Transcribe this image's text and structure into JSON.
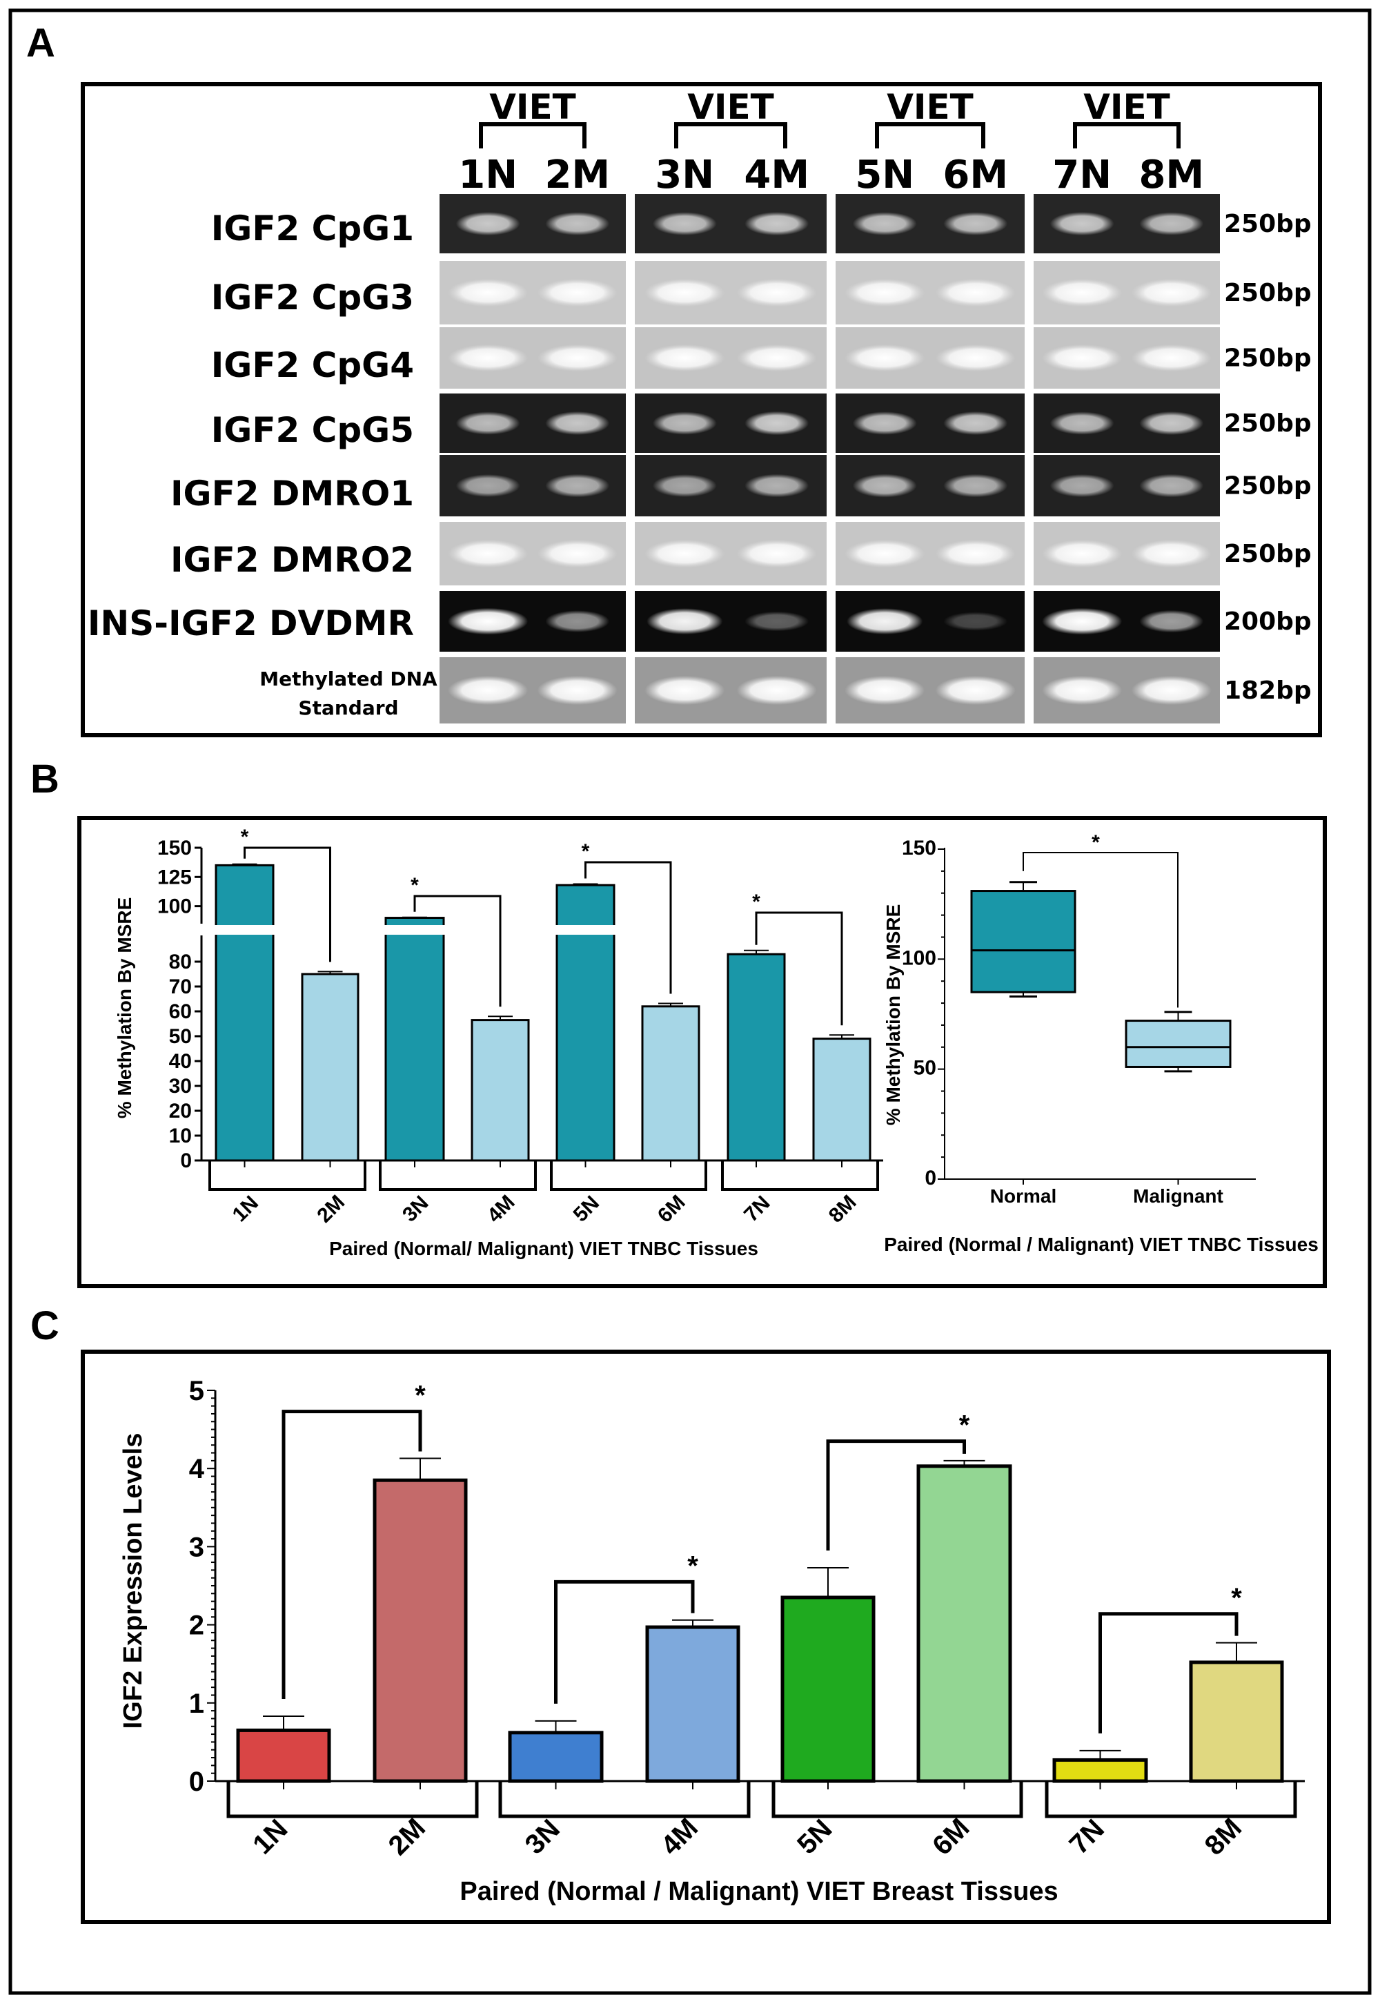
{
  "panel_letters": {
    "a": "A",
    "b": "B",
    "c": "C"
  },
  "gel": {
    "group_header": "VIET",
    "lanes": [
      "1N",
      "2M",
      "3N",
      "4M",
      "5N",
      "6M",
      "7N",
      "8M"
    ],
    "rows": [
      {
        "label": "IGF2 CpG1",
        "size": "250bp",
        "background": "#262626",
        "bands": [
          0.75,
          0.72,
          0.72,
          0.75,
          0.72,
          0.72,
          0.75,
          0.7
        ]
      },
      {
        "label": "IGF2 CpG3",
        "size": "250bp",
        "background": "#c8c8c8",
        "bands": [
          1,
          1,
          1,
          1,
          1,
          1,
          1,
          1
        ]
      },
      {
        "label": "IGF2 CpG4",
        "size": "250bp",
        "background": "#c4c4c4",
        "bands": [
          1,
          1,
          1,
          1,
          1,
          1,
          1,
          1
        ]
      },
      {
        "label": "IGF2 CpG5",
        "size": "250bp",
        "background": "#1e1e1e",
        "bands": [
          0.7,
          0.75,
          0.7,
          0.78,
          0.72,
          0.75,
          0.7,
          0.75
        ]
      },
      {
        "label": "IGF2 DMRO1",
        "size": "250bp",
        "background": "#222222",
        "bands": [
          0.6,
          0.65,
          0.6,
          0.65,
          0.68,
          0.65,
          0.62,
          0.65
        ]
      },
      {
        "label": "IGF2 DMRO2",
        "size": "250bp",
        "background": "#c6c6c6",
        "bands": [
          1,
          1,
          1,
          1,
          1,
          1,
          1,
          1
        ]
      },
      {
        "label": "INS-IGF2 DVDMR",
        "size": "200bp",
        "background": "#0c0c0c",
        "bands": [
          1,
          0.55,
          0.95,
          0.35,
          0.95,
          0.25,
          1,
          0.6
        ]
      },
      {
        "label": "Methylated DNA Standard",
        "label_lines": [
          "Methylated DNA",
          "Standard"
        ],
        "size": "182bp",
        "background": "#9a9a9a",
        "bands": [
          1,
          1,
          1,
          1,
          1,
          1,
          1,
          1
        ]
      }
    ]
  },
  "chart_data": [
    {
      "type": "bar",
      "panel": "B",
      "categories": [
        "1N",
        "2M",
        "3N",
        "4M",
        "5N",
        "6M",
        "7N",
        "8M"
      ],
      "values": [
        135,
        75,
        90,
        56.5,
        118,
        62,
        83,
        49
      ],
      "errors": [
        1,
        1,
        0.5,
        1.5,
        1,
        1.2,
        1.5,
        1.5
      ],
      "colors": [
        "#1a97a8",
        "#a6d6e6",
        "#1a97a8",
        "#a6d6e6",
        "#1a97a8",
        "#a6d6e6",
        "#1a97a8",
        "#a6d6e6"
      ],
      "ylabel": "% Methylation By MSRE",
      "xlabel": "Paired (Normal/ Malignant) VIET TNBC Tissues",
      "ylim": [
        0,
        150
      ],
      "axis_break": [
        85,
        87
      ],
      "yticks": [
        0,
        10,
        20,
        30,
        40,
        50,
        60,
        70,
        80,
        100,
        125,
        150
      ],
      "significance": "*",
      "pairs": [
        [
          0,
          1
        ],
        [
          2,
          3
        ],
        [
          4,
          5
        ],
        [
          6,
          7
        ]
      ]
    },
    {
      "type": "box",
      "panel": "B",
      "categories": [
        "Normal",
        "Malignant"
      ],
      "boxes": [
        {
          "min": 83,
          "q1": 85,
          "median": 104,
          "q3": 131,
          "max": 135,
          "color": "#1a97a8"
        },
        {
          "min": 49,
          "q1": 51,
          "median": 60,
          "q3": 72,
          "max": 76,
          "color": "#a6d6e6"
        }
      ],
      "ylabel": "% Methylation By MSRE",
      "xlabel": "Paired (Normal / Malignant) VIET TNBC Tissues",
      "ylim": [
        0,
        150
      ],
      "yticks": [
        0,
        50,
        100,
        150
      ],
      "significance": "*"
    },
    {
      "type": "bar",
      "panel": "C",
      "categories": [
        "1N",
        "2M",
        "3N",
        "4M",
        "5N",
        "6M",
        "7N",
        "8M"
      ],
      "values": [
        0.65,
        3.85,
        0.62,
        1.97,
        2.35,
        4.03,
        0.27,
        1.52
      ],
      "errors": [
        0.18,
        0.28,
        0.15,
        0.09,
        0.38,
        0.07,
        0.12,
        0.25
      ],
      "colors": [
        "#d94545",
        "#c46a6a",
        "#3f7fd0",
        "#7ea9dc",
        "#1faa1f",
        "#93d693",
        "#e2dc12",
        "#e0d880"
      ],
      "ylabel": "IGF2 Expression Levels",
      "xlabel": "Paired (Normal / Malignant) VIET Breast Tissues",
      "ylim": [
        0,
        5
      ],
      "yticks": [
        0,
        1,
        2,
        3,
        4,
        5
      ],
      "significance": "*",
      "pairs": [
        [
          0,
          1
        ],
        [
          2,
          3
        ],
        [
          4,
          5
        ],
        [
          6,
          7
        ]
      ]
    }
  ]
}
